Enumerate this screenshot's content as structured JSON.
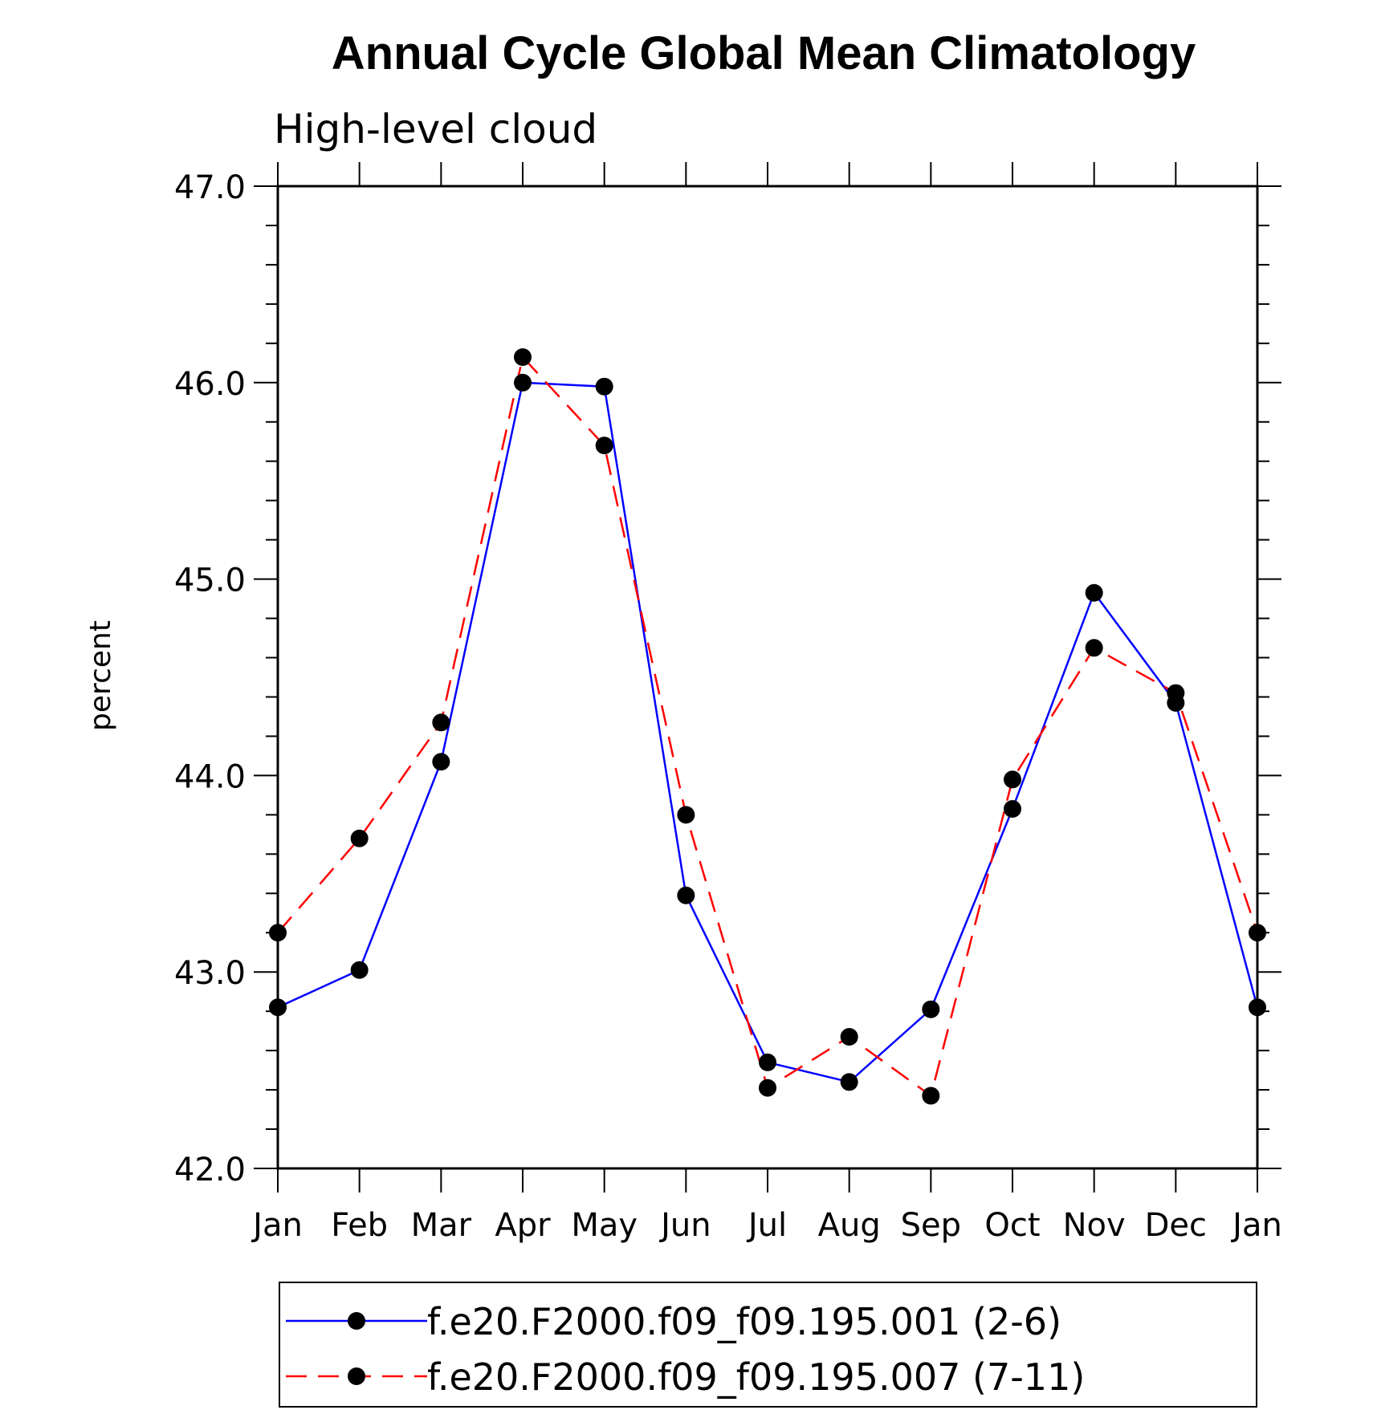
{
  "chart_data": {
    "type": "line",
    "title": "Annual Cycle Global Mean Climatology",
    "subtitle": "High-level cloud",
    "xlabel": "",
    "ylabel": "percent",
    "ylim": [
      42.0,
      47.0
    ],
    "ytick_labels": [
      "42.0",
      "43.0",
      "44.0",
      "45.0",
      "46.0",
      "47.0"
    ],
    "ytick_values": [
      42.0,
      43.0,
      44.0,
      45.0,
      46.0,
      47.0
    ],
    "categories": [
      "Jan",
      "Feb",
      "Mar",
      "Apr",
      "May",
      "Jun",
      "Jul",
      "Aug",
      "Sep",
      "Oct",
      "Nov",
      "Dec",
      "Jan"
    ],
    "series": [
      {
        "name": "f.e20.F2000.f09_f09.195.001 (2-6)",
        "color": "#0000ff",
        "style": "solid",
        "marker_color": "#000000",
        "values": [
          42.82,
          43.01,
          44.07,
          46.0,
          45.98,
          43.39,
          42.54,
          42.44,
          42.81,
          43.83,
          44.93,
          44.37,
          42.82
        ]
      },
      {
        "name": "f.e20.F2000.f09_f09.195.007 (7-11)",
        "color": "#ff0000",
        "style": "dashed",
        "marker_color": "#000000",
        "values": [
          43.2,
          43.68,
          44.27,
          46.13,
          45.68,
          43.8,
          42.41,
          42.67,
          42.37,
          43.98,
          44.65,
          44.42,
          43.2
        ]
      }
    ],
    "legend_position": "bottom"
  }
}
